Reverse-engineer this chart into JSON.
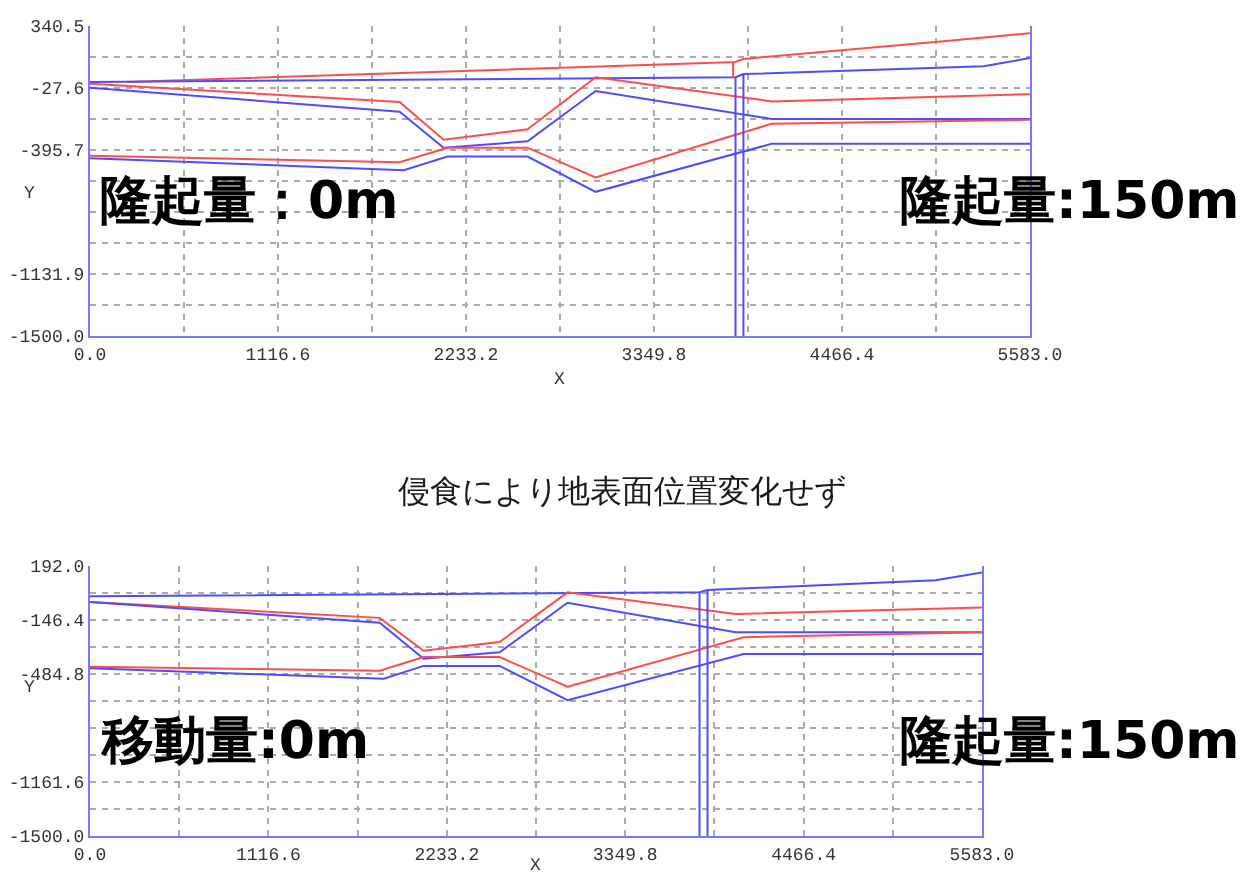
{
  "chart_data": [
    {
      "type": "line",
      "xlabel": "X",
      "ylabel": "Y",
      "annotations": [
        "隆起量：0m",
        "隆起量:150m"
      ],
      "marker": "none",
      "line_style": "solid",
      "grid": true,
      "xlim": [
        0,
        5583
      ],
      "ylim": [
        -1500,
        340.5
      ],
      "xticks": [
        {
          "value": 0,
          "label": "0.0"
        },
        {
          "value": 558.3,
          "label": null
        },
        {
          "value": 1116.6,
          "label": "1116.6"
        },
        {
          "value": 1674.9,
          "label": null
        },
        {
          "value": 2233.2,
          "label": "2233.2"
        },
        {
          "value": 2791.5,
          "label": null
        },
        {
          "value": 3349.8,
          "label": "3349.8"
        },
        {
          "value": 3908.1,
          "label": null
        },
        {
          "value": 4466.4,
          "label": "4466.4"
        },
        {
          "value": 5024.7,
          "label": null
        },
        {
          "value": 5583,
          "label": "5583.0"
        }
      ],
      "yticks": [
        {
          "value": -1500,
          "label": "-1500.0"
        },
        {
          "value": -1315.95,
          "label": null
        },
        {
          "value": -1131.9,
          "label": "-1131.9"
        },
        {
          "value": -947.85,
          "label": null
        },
        {
          "value": -763.8,
          "label": null
        },
        {
          "value": -579.75,
          "label": null
        },
        {
          "value": -395.7,
          "label": "-395.7"
        },
        {
          "value": -211.65,
          "label": null
        },
        {
          "value": -27.6,
          "label": "-27.6"
        },
        {
          "value": 156.45,
          "label": null
        },
        {
          "value": 340.5,
          "label": "340.5"
        }
      ],
      "series": [
        {
          "color": "#ff4d4d",
          "x": [
            223,
            3834,
            3881,
            5069,
            5583
          ],
          "values": [
            8,
            127,
            145,
            250,
            298
          ]
        },
        {
          "color": "#4d4dff",
          "x": [
            0,
            3834,
            3881,
            5307,
            5583
          ],
          "values": [
            8,
            36,
            55,
            102,
            150
          ]
        },
        {
          "color": "#ff4d4d",
          "x": [
            0,
            1839,
            2100,
            2599,
            3003,
            4048,
            5583
          ],
          "values": [
            -2,
            -111,
            -335,
            -273,
            36,
            -107,
            -64
          ]
        },
        {
          "color": "#4d4dff",
          "x": [
            0,
            1839,
            2100,
            2599,
            3003,
            4048,
            5583
          ],
          "values": [
            -26,
            -168,
            -382,
            -344,
            -45,
            -211,
            -211
          ]
        },
        {
          "color": "#ff4d4d",
          "x": [
            0,
            1839,
            2123,
            2599,
            3003,
            4048,
            5583
          ],
          "values": [
            -430,
            -468,
            -382,
            -382,
            -558,
            -240,
            -216
          ]
        },
        {
          "color": "#4d4dff",
          "x": [
            0,
            1863,
            2123,
            2599,
            3003,
            4048,
            5583
          ],
          "values": [
            -444,
            -516,
            -435,
            -435,
            -644,
            -359,
            -359
          ]
        },
        {
          "color": "#4d4dff",
          "x": [
            3834,
            3834
          ],
          "values": [
            36,
            -1500
          ]
        },
        {
          "color": "#4d4dff",
          "x": [
            3881,
            3881
          ],
          "values": [
            55,
            -1500
          ]
        },
        {
          "color": "#ff4d4d",
          "x": [
            3820,
            3820
          ],
          "values": [
            127,
            36
          ]
        }
      ]
    },
    {
      "type": "line",
      "title": "侵食により地表面位置変化せず",
      "xlabel": "X",
      "ylabel": "Y",
      "annotations": [
        "移動量:0m",
        "隆起量:150m"
      ],
      "marker": "none",
      "line_style": "solid",
      "grid": true,
      "xlim": [
        0,
        5583
      ],
      "ylim": [
        -1500,
        192
      ],
      "xticks": [
        {
          "value": 0,
          "label": "0.0"
        },
        {
          "value": 558.3,
          "label": null
        },
        {
          "value": 1116.6,
          "label": "1116.6"
        },
        {
          "value": 1674.9,
          "label": null
        },
        {
          "value": 2233.2,
          "label": "2233.2"
        },
        {
          "value": 2791.5,
          "label": null
        },
        {
          "value": 3349.8,
          "label": "3349.8"
        },
        {
          "value": 3908.1,
          "label": null
        },
        {
          "value": 4466.4,
          "label": "4466.4"
        },
        {
          "value": 5024.7,
          "label": null
        },
        {
          "value": 5583,
          "label": "5583.0"
        }
      ],
      "yticks": [
        {
          "value": -1500,
          "label": "-1500.0"
        },
        {
          "value": -1330.8,
          "label": null
        },
        {
          "value": -1161.6,
          "label": "-1161.6"
        },
        {
          "value": -992.4,
          "label": null
        },
        {
          "value": -823.2,
          "label": null
        },
        {
          "value": -654,
          "label": null
        },
        {
          "value": -484.8,
          "label": "-484.8"
        },
        {
          "value": -315.6,
          "label": null
        },
        {
          "value": -146.4,
          "label": "-146.4"
        },
        {
          "value": 22.8,
          "label": null
        },
        {
          "value": 192,
          "label": "192.0"
        }
      ],
      "series": [
        {
          "color": "#4d4dff",
          "x": [
            0,
            3815,
            3865,
            5292,
            5583
          ],
          "values": [
            2,
            27,
            42,
            102,
            152
          ]
        },
        {
          "color": "#ff4d4d",
          "x": [
            0,
            1813,
            2088,
            2564,
            2989,
            4041,
            5583
          ],
          "values": [
            -33,
            -133,
            -339,
            -284,
            27,
            -108,
            -68
          ]
        },
        {
          "color": "#4d4dff",
          "x": [
            0,
            1813,
            2088,
            2564,
            2989,
            4041,
            5583
          ],
          "values": [
            -33,
            -163,
            -389,
            -349,
            -38,
            -223,
            -223
          ]
        },
        {
          "color": "#ff4d4d",
          "x": [
            0,
            1813,
            2088,
            2564,
            2989,
            4091,
            5583
          ],
          "values": [
            -439,
            -464,
            -379,
            -379,
            -564,
            -254,
            -223
          ]
        },
        {
          "color": "#4d4dff",
          "x": [
            0,
            1838,
            2088,
            2564,
            2989,
            4091,
            5583
          ],
          "values": [
            -449,
            -514,
            -434,
            -434,
            -649,
            -359,
            -359
          ]
        },
        {
          "color": "#4d4dff",
          "x": [
            3815,
            3815
          ],
          "values": [
            27,
            -1500
          ]
        },
        {
          "color": "#4d4dff",
          "x": [
            3865,
            3865
          ],
          "values": [
            42,
            -1500
          ]
        }
      ]
    }
  ]
}
